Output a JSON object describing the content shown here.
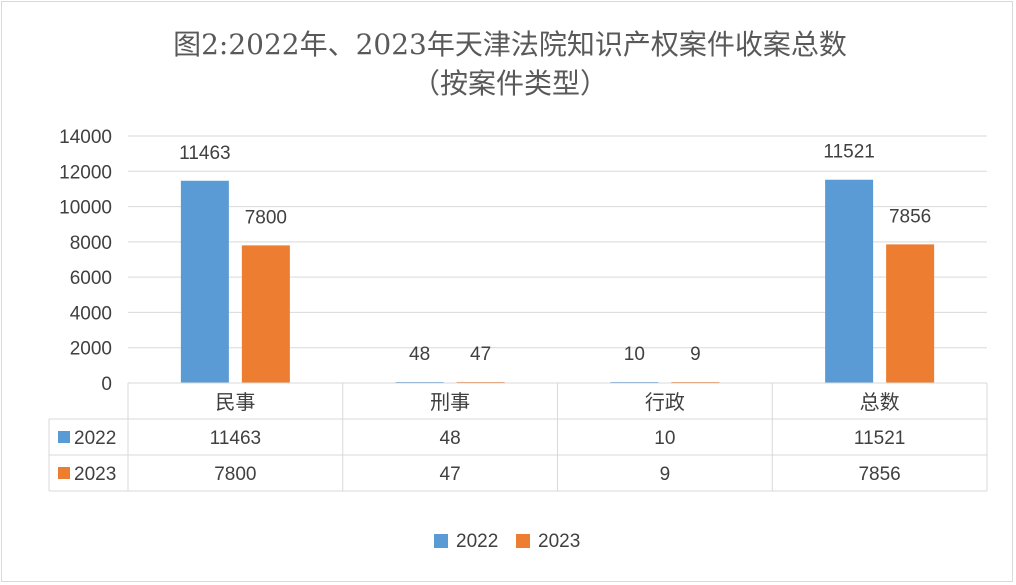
{
  "chart_data": {
    "type": "bar",
    "title": "图2:2022年、2023年天津法院知识产权案件收案总数",
    "subtitle": "（按案件类型）",
    "categories": [
      "民事",
      "刑事",
      "行政",
      "总数"
    ],
    "series": [
      {
        "name": "2022",
        "values": [
          11463,
          48,
          10,
          11521
        ],
        "color": "#5b9bd5"
      },
      {
        "name": "2023",
        "values": [
          7800,
          47,
          9,
          7856
        ],
        "color": "#ed7d31"
      }
    ],
    "ylim": [
      0,
      14000
    ],
    "yticks": [
      0,
      2000,
      4000,
      6000,
      8000,
      10000,
      12000,
      14000
    ],
    "grid": true,
    "data_table": true,
    "legend": "bottom"
  }
}
